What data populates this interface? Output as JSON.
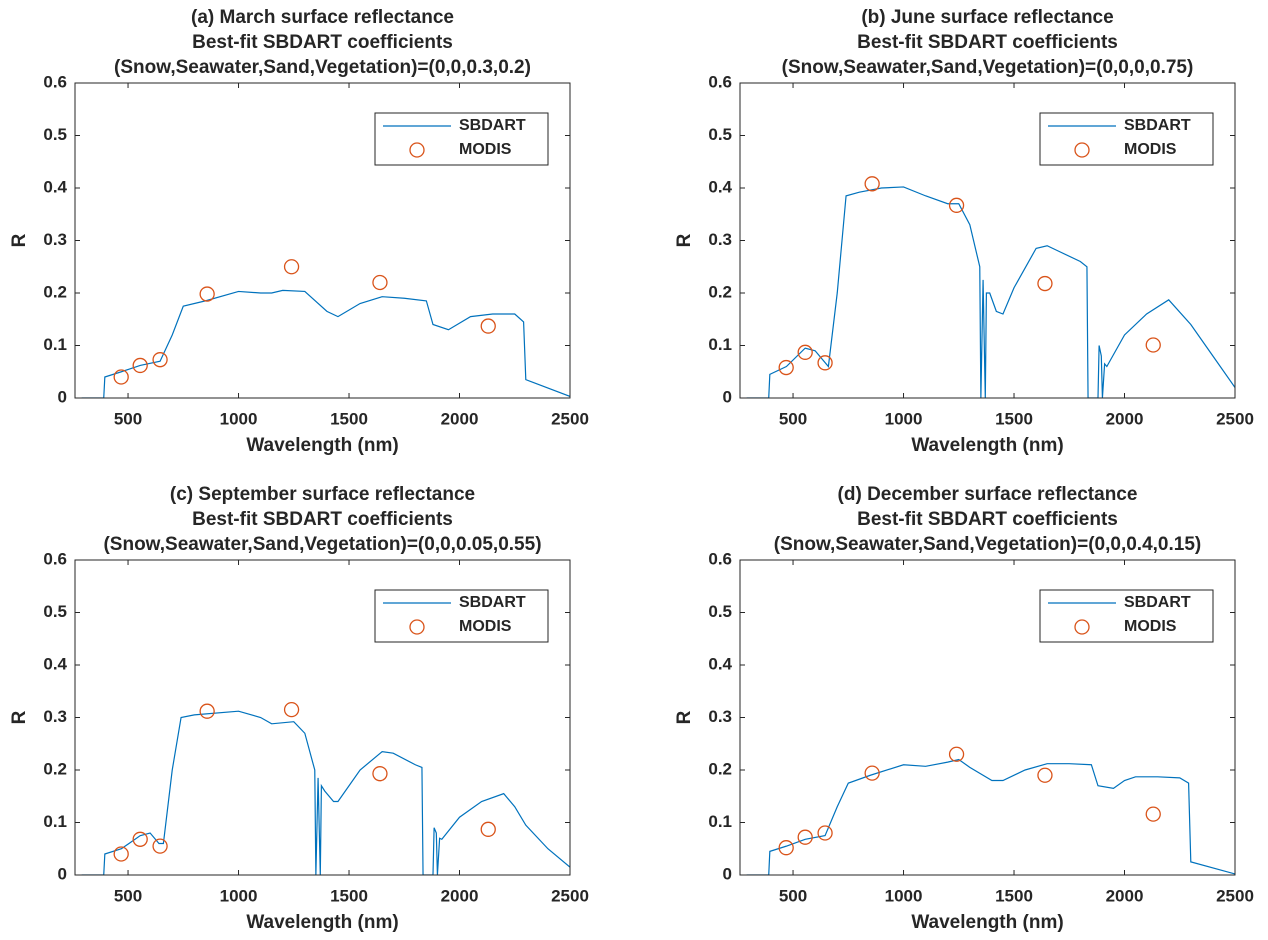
{
  "chart_data": [
    {
      "type": "line",
      "title": [
        "(a) March surface reflectance",
        "Best-fit SBDART coefficients",
        "(Snow,Seawater,Sand,Vegetation)=(0,0,0.3,0.2)"
      ],
      "x_label": "Wavelength (nm)",
      "y_label": "R",
      "xlim": [
        260,
        2500
      ],
      "ylim": [
        0,
        0.6
      ],
      "xticks": [
        500,
        1000,
        1500,
        2000,
        2500
      ],
      "yticks": [
        0,
        0.1,
        0.2,
        0.3,
        0.4,
        0.5,
        0.6
      ],
      "legend": "upper right",
      "series": [
        {
          "name": "SBDART",
          "color": "#0072bd",
          "marker": "none",
          "x": [
            290,
            390,
            395,
            470,
            555,
            645,
            700,
            750,
            850,
            1000,
            1100,
            1150,
            1200,
            1300,
            1400,
            1450,
            1550,
            1650,
            1750,
            1850,
            1880,
            1950,
            2050,
            2150,
            2250,
            2290,
            2300,
            2500
          ],
          "values": [
            0,
            0,
            0.04,
            0.05,
            0.062,
            0.07,
            0.12,
            0.175,
            0.185,
            0.203,
            0.2,
            0.2,
            0.205,
            0.203,
            0.165,
            0.155,
            0.18,
            0.193,
            0.19,
            0.185,
            0.14,
            0.13,
            0.155,
            0.16,
            0.16,
            0.145,
            0.035,
            0.003
          ]
        },
        {
          "name": "MODIS",
          "color": "#d95319",
          "marker": "circle",
          "x": [
            469,
            555,
            645,
            858,
            1240,
            1640,
            2130
          ],
          "values": [
            0.04,
            0.062,
            0.073,
            0.198,
            0.25,
            0.22,
            0.137
          ]
        }
      ]
    },
    {
      "type": "line",
      "title": [
        "(b) June surface reflectance",
        "Best-fit SBDART coefficients",
        "(Snow,Seawater,Sand,Vegetation)=(0,0,0,0.75)"
      ],
      "x_label": "Wavelength (nm)",
      "y_label": "R",
      "xlim": [
        260,
        2500
      ],
      "ylim": [
        0,
        0.6
      ],
      "xticks": [
        500,
        1000,
        1500,
        2000,
        2500
      ],
      "yticks": [
        0,
        0.1,
        0.2,
        0.3,
        0.4,
        0.5,
        0.6
      ],
      "legend": "upper right",
      "series": [
        {
          "name": "SBDART",
          "color": "#0072bd",
          "marker": "none",
          "x": [
            290,
            390,
            395,
            470,
            555,
            600,
            660,
            700,
            740,
            800,
            900,
            1000,
            1100,
            1200,
            1250,
            1300,
            1345,
            1350,
            1360,
            1370,
            1375,
            1390,
            1420,
            1450,
            1500,
            1600,
            1650,
            1700,
            1800,
            1830,
            1835,
            1880,
            1885,
            1895,
            1900,
            1910,
            1920,
            2000,
            2100,
            2200,
            2300,
            2400,
            2500
          ],
          "values": [
            0,
            0,
            0.045,
            0.06,
            0.095,
            0.09,
            0.06,
            0.2,
            0.385,
            0.392,
            0.4,
            0.402,
            0.385,
            0.37,
            0.37,
            0.33,
            0.25,
            0,
            0.225,
            0,
            0.2,
            0.2,
            0.165,
            0.16,
            0.21,
            0.285,
            0.29,
            0.28,
            0.26,
            0.25,
            0,
            0,
            0.1,
            0.08,
            0,
            0.065,
            0.06,
            0.12,
            0.16,
            0.187,
            0.14,
            0.08,
            0.02
          ]
        },
        {
          "name": "MODIS",
          "color": "#d95319",
          "marker": "circle",
          "x": [
            469,
            555,
            645,
            858,
            1240,
            1640,
            2130
          ],
          "values": [
            0.058,
            0.087,
            0.067,
            0.408,
            0.367,
            0.218,
            0.101
          ]
        }
      ]
    },
    {
      "type": "line",
      "title": [
        "(c) September surface reflectance",
        "Best-fit SBDART coefficients",
        "(Snow,Seawater,Sand,Vegetation)=(0,0,0.05,0.55)"
      ],
      "x_label": "Wavelength (nm)",
      "y_label": "R",
      "xlim": [
        260,
        2500
      ],
      "ylim": [
        0,
        0.6
      ],
      "xticks": [
        500,
        1000,
        1500,
        2000,
        2500
      ],
      "yticks": [
        0,
        0.1,
        0.2,
        0.3,
        0.4,
        0.5,
        0.6
      ],
      "legend": "upper right",
      "series": [
        {
          "name": "SBDART",
          "color": "#0072bd",
          "marker": "none",
          "x": [
            290,
            390,
            395,
            470,
            555,
            600,
            640,
            660,
            700,
            740,
            800,
            1000,
            1100,
            1150,
            1250,
            1300,
            1345,
            1350,
            1360,
            1370,
            1375,
            1390,
            1430,
            1450,
            1550,
            1650,
            1700,
            1800,
            1830,
            1835,
            1880,
            1885,
            1895,
            1900,
            1910,
            1920,
            2000,
            2100,
            2200,
            2250,
            2300,
            2400,
            2500
          ],
          "values": [
            0,
            0,
            0.04,
            0.05,
            0.075,
            0.08,
            0.06,
            0.06,
            0.2,
            0.3,
            0.305,
            0.312,
            0.3,
            0.288,
            0.292,
            0.27,
            0.2,
            0,
            0.185,
            0,
            0.17,
            0.16,
            0.14,
            0.14,
            0.2,
            0.235,
            0.232,
            0.21,
            0.205,
            0,
            0,
            0.09,
            0.08,
            0,
            0.07,
            0.068,
            0.11,
            0.14,
            0.155,
            0.13,
            0.095,
            0.05,
            0.015
          ]
        },
        {
          "name": "MODIS",
          "color": "#d95319",
          "marker": "circle",
          "x": [
            469,
            555,
            645,
            858,
            1240,
            1640,
            2130
          ],
          "values": [
            0.04,
            0.068,
            0.055,
            0.312,
            0.315,
            0.193,
            0.087
          ]
        }
      ]
    },
    {
      "type": "line",
      "title": [
        "(d) December surface reflectance",
        "Best-fit SBDART coefficients",
        "(Snow,Seawater,Sand,Vegetation)=(0,0,0.4,0.15)"
      ],
      "x_label": "Wavelength (nm)",
      "y_label": "R",
      "xlim": [
        260,
        2500
      ],
      "ylim": [
        0,
        0.6
      ],
      "xticks": [
        500,
        1000,
        1500,
        2000,
        2500
      ],
      "yticks": [
        0,
        0.1,
        0.2,
        0.3,
        0.4,
        0.5,
        0.6
      ],
      "legend": "upper right",
      "series": [
        {
          "name": "SBDART",
          "color": "#0072bd",
          "marker": "none",
          "x": [
            290,
            390,
            395,
            470,
            555,
            645,
            700,
            750,
            850,
            1000,
            1100,
            1200,
            1250,
            1300,
            1400,
            1450,
            1550,
            1650,
            1750,
            1850,
            1880,
            1950,
            2000,
            2050,
            2150,
            2250,
            2290,
            2300,
            2500
          ],
          "values": [
            0,
            0,
            0.045,
            0.055,
            0.068,
            0.075,
            0.13,
            0.175,
            0.19,
            0.21,
            0.207,
            0.215,
            0.22,
            0.205,
            0.18,
            0.18,
            0.2,
            0.212,
            0.212,
            0.21,
            0.17,
            0.165,
            0.18,
            0.187,
            0.187,
            0.185,
            0.175,
            0.025,
            0.002
          ]
        },
        {
          "name": "MODIS",
          "color": "#d95319",
          "marker": "circle",
          "x": [
            469,
            555,
            645,
            858,
            1240,
            1640,
            2130
          ],
          "values": [
            0.052,
            0.072,
            0.08,
            0.194,
            0.23,
            0.19,
            0.116
          ]
        }
      ]
    }
  ]
}
